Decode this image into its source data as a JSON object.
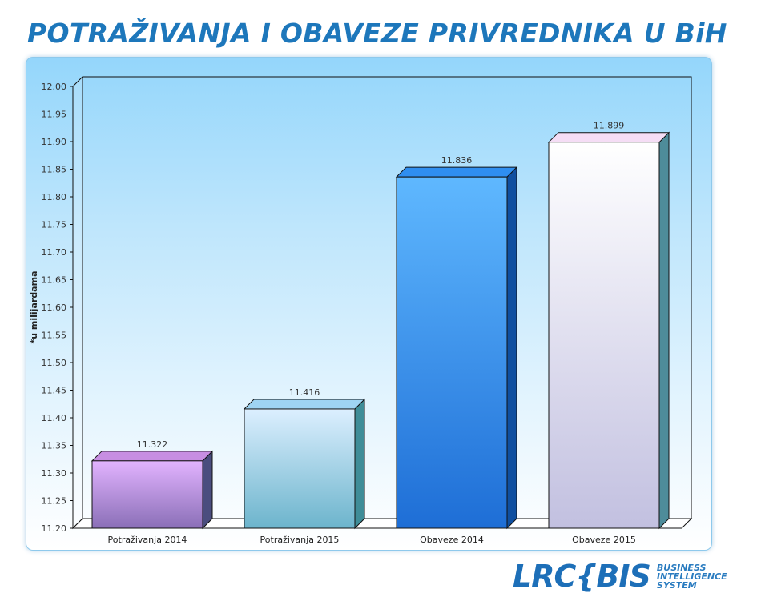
{
  "header": {
    "title": "POTRAŽIVANJA I OBAVEZE PRIVREDNIKA U BiH"
  },
  "chart_data": {
    "type": "bar",
    "title": "POTRAŽIVANJA I OBAVEZE PRIVREDNIKA U BiH",
    "xlabel": "",
    "ylabel": "*u milijardama",
    "categories": [
      "Potraživanja 2014",
      "Potraživanja 2015",
      "Obaveze 2014",
      "Obaveze 2015"
    ],
    "values": [
      11.322,
      11.416,
      11.836,
      11.899
    ],
    "value_labels": [
      "11.322",
      "11.416",
      "11.836",
      "11.899"
    ],
    "ylim": [
      11.2,
      12.0
    ],
    "yticks": [
      "11.20",
      "11.25",
      "11.30",
      "11.35",
      "11.40",
      "11.45",
      "11.50",
      "11.55",
      "11.60",
      "11.65",
      "11.70",
      "11.75",
      "11.80",
      "11.85",
      "11.90",
      "11.95",
      "12.00"
    ],
    "grid": false,
    "legend": "none",
    "bar_colors": [
      {
        "top": "#e2b3ff",
        "bottom": "#8a6fb7",
        "side": "#4a4d7e",
        "cap": "#c78ee2"
      },
      {
        "top": "#dcefff",
        "bottom": "#6cb4cc",
        "side": "#3f8d98",
        "cap": "#9fd4f3"
      },
      {
        "top": "#5fb8ff",
        "bottom": "#1e6ed6",
        "side": "#0f4fa0",
        "cap": "#2f8ef0"
      },
      {
        "top": "#ffffff",
        "bottom": "#c2c0e0",
        "side": "#4e8c9a",
        "cap": "#f5ddf5"
      }
    ]
  },
  "logo": {
    "mark": "LRC{BIS",
    "tagline": [
      "BUSINESS",
      "INTELLIGENCE",
      "SYSTEM"
    ]
  }
}
